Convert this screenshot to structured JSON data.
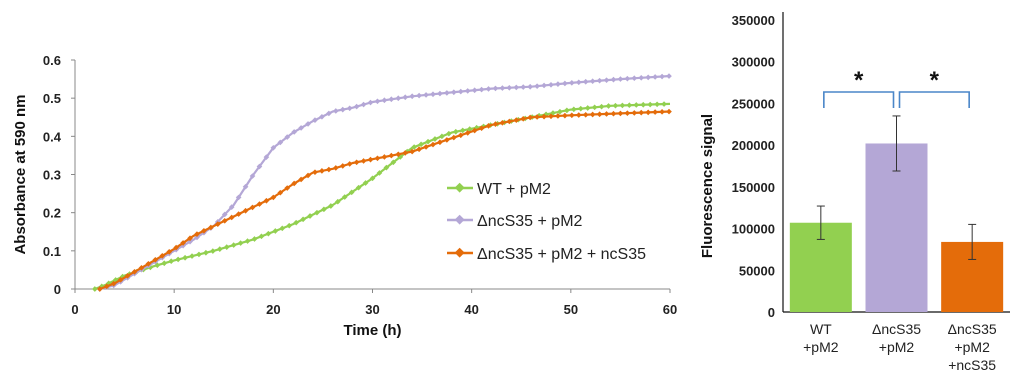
{
  "colors": {
    "wt": "#92d050",
    "dncs35": "#b4a7d6",
    "comp": "#e46c0a",
    "bracket": "#4a86c8"
  },
  "chart_data": [
    {
      "type": "line",
      "xlabel": "Time (h)",
      "ylabel": "Absorbance at 590 nm",
      "xlim": [
        0,
        60
      ],
      "ylim": [
        0,
        0.6
      ],
      "xticks": [
        "0",
        "10",
        "20",
        "30",
        "40",
        "50",
        "60"
      ],
      "yticks": [
        "0",
        "0.1",
        "0.2",
        "0.3",
        "0.4",
        "0.5",
        "0.6"
      ],
      "grid": false,
      "legend": "right",
      "series": [
        {
          "name": "WT + pM2",
          "color": "#92d050",
          "points": [
            [
              2,
              0
            ],
            [
              3,
              0.01
            ],
            [
              5,
              0.035
            ],
            [
              8,
              0.06
            ],
            [
              10,
              0.075
            ],
            [
              14,
              0.1
            ],
            [
              18,
              0.13
            ],
            [
              22,
              0.17
            ],
            [
              26,
              0.22
            ],
            [
              30,
              0.29
            ],
            [
              34,
              0.37
            ],
            [
              38,
              0.41
            ],
            [
              42,
              0.43
            ],
            [
              46,
              0.45
            ],
            [
              50,
              0.47
            ],
            [
              54,
              0.48
            ],
            [
              60,
              0.485
            ]
          ]
        },
        {
          "name": "ΔncS35 + pM2",
          "color": "#b4a7d6",
          "points": [
            [
              2.5,
              0
            ],
            [
              4,
              0.01
            ],
            [
              6,
              0.04
            ],
            [
              8,
              0.07
            ],
            [
              10,
              0.1
            ],
            [
              12,
              0.13
            ],
            [
              14,
              0.165
            ],
            [
              16,
              0.22
            ],
            [
              18,
              0.3
            ],
            [
              20,
              0.37
            ],
            [
              22,
              0.41
            ],
            [
              24,
              0.44
            ],
            [
              26,
              0.465
            ],
            [
              28,
              0.475
            ],
            [
              30,
              0.49
            ],
            [
              34,
              0.505
            ],
            [
              38,
              0.515
            ],
            [
              42,
              0.525
            ],
            [
              46,
              0.53
            ],
            [
              50,
              0.54
            ],
            [
              55,
              0.55
            ],
            [
              60,
              0.558
            ]
          ]
        },
        {
          "name": "ΔncS35 + pM2 + ncS35",
          "color": "#e46c0a",
          "points": [
            [
              2.5,
              0
            ],
            [
              4,
              0.015
            ],
            [
              6,
              0.045
            ],
            [
              8,
              0.075
            ],
            [
              10,
              0.105
            ],
            [
              12,
              0.14
            ],
            [
              14,
              0.165
            ],
            [
              16,
              0.19
            ],
            [
              18,
              0.215
            ],
            [
              20,
              0.24
            ],
            [
              22,
              0.275
            ],
            [
              24,
              0.305
            ],
            [
              26,
              0.315
            ],
            [
              28,
              0.33
            ],
            [
              30,
              0.34
            ],
            [
              34,
              0.36
            ],
            [
              38,
              0.395
            ],
            [
              42,
              0.43
            ],
            [
              46,
              0.45
            ],
            [
              50,
              0.455
            ],
            [
              55,
              0.46
            ],
            [
              60,
              0.465
            ]
          ]
        }
      ]
    },
    {
      "type": "bar",
      "ylabel": "Fluorescence signal",
      "ylim": [
        0,
        350000
      ],
      "yticks": [
        "0",
        "50000",
        "100000",
        "150000",
        "200000",
        "250000",
        "300000",
        "350000"
      ],
      "grid": false,
      "categories": [
        [
          "WT",
          "+pM2"
        ],
        [
          "ΔncS35",
          "+pM2"
        ],
        [
          "ΔncS35",
          "+pM2",
          "+ncS35"
        ]
      ],
      "values": [
        107000,
        202000,
        84000
      ],
      "errors": [
        20000,
        33000,
        21000
      ],
      "bar_colors": [
        "#92d050",
        "#b4a7d6",
        "#e46c0a"
      ],
      "significance": [
        {
          "from": 0,
          "to": 1,
          "label": "*"
        },
        {
          "from": 1,
          "to": 2,
          "label": "*"
        }
      ]
    }
  ]
}
